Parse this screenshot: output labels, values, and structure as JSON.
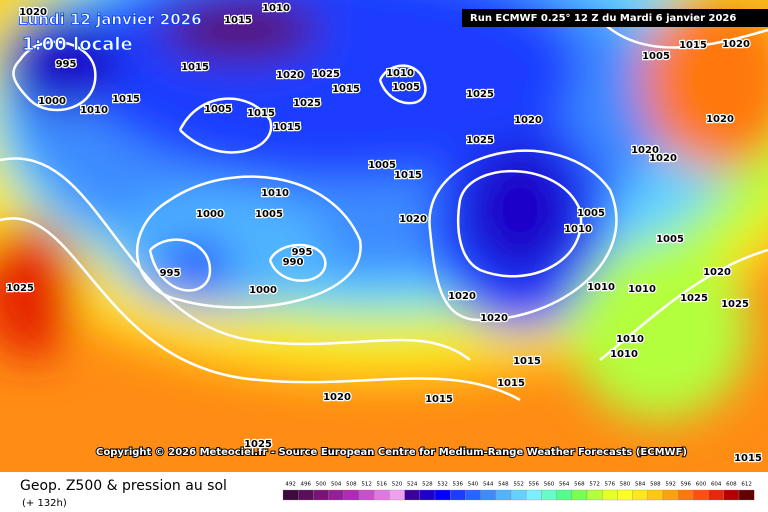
{
  "header": {
    "date": "Lundi 12 janvier 2026",
    "time": "1:00 locale",
    "run": "Run ECMWF 0.25° 12 Z du Mardi 6 janvier 2026",
    "copyright": "Copyright © 2026 Meteociel.fr - Source European Centre for Medium-Range Weather Forecasts (ECMWF)"
  },
  "footer": {
    "title": "Geop. Z500 & pression au sol",
    "subtitle": "(+ 132h)"
  },
  "legend": {
    "ticks": [
      492,
      496,
      500,
      504,
      508,
      512,
      516,
      520,
      524,
      528,
      532,
      536,
      540,
      544,
      548,
      552,
      556,
      560,
      564,
      568,
      572,
      576,
      580,
      584,
      588,
      592,
      596,
      600,
      604,
      608,
      612
    ],
    "colors": [
      "#3c0a3c",
      "#5a0f5a",
      "#781478",
      "#961e96",
      "#b428b4",
      "#c850c8",
      "#e178e1",
      "#f0a0f0",
      "#3c00a0",
      "#1e00c8",
      "#0000ff",
      "#1e3cff",
      "#2864ff",
      "#3c8cff",
      "#50b4ff",
      "#64d2ff",
      "#78f0ff",
      "#64ffc8",
      "#50ff8c",
      "#78ff50",
      "#b4ff3c",
      "#e6ff28",
      "#ffff28",
      "#ffe61e",
      "#ffc814",
      "#ffa014",
      "#ff780f",
      "#ff500a",
      "#e62805",
      "#b40000",
      "#640000"
    ]
  },
  "isobar_labels": [
    "995",
    "1000",
    "1010",
    "1015",
    "1015",
    "1005",
    "1015",
    "1015",
    "1020",
    "1025",
    "1025",
    "1015",
    "1010",
    "1005",
    "1025",
    "1020",
    "1025",
    "1005",
    "1015",
    "1010",
    "1000",
    "1005",
    "1020",
    "995",
    "990",
    "995",
    "1000",
    "1005",
    "1010",
    "1005",
    "1020",
    "1020",
    "1010",
    "1010",
    "1020",
    "1025",
    "1025",
    "1010",
    "1010",
    "1015",
    "1015",
    "1020",
    "1015",
    "1025",
    "1020",
    "1020",
    "1020",
    "1015",
    "1005",
    "1020",
    "1015",
    "1025",
    "1010",
    "1015",
    "1020"
  ]
}
